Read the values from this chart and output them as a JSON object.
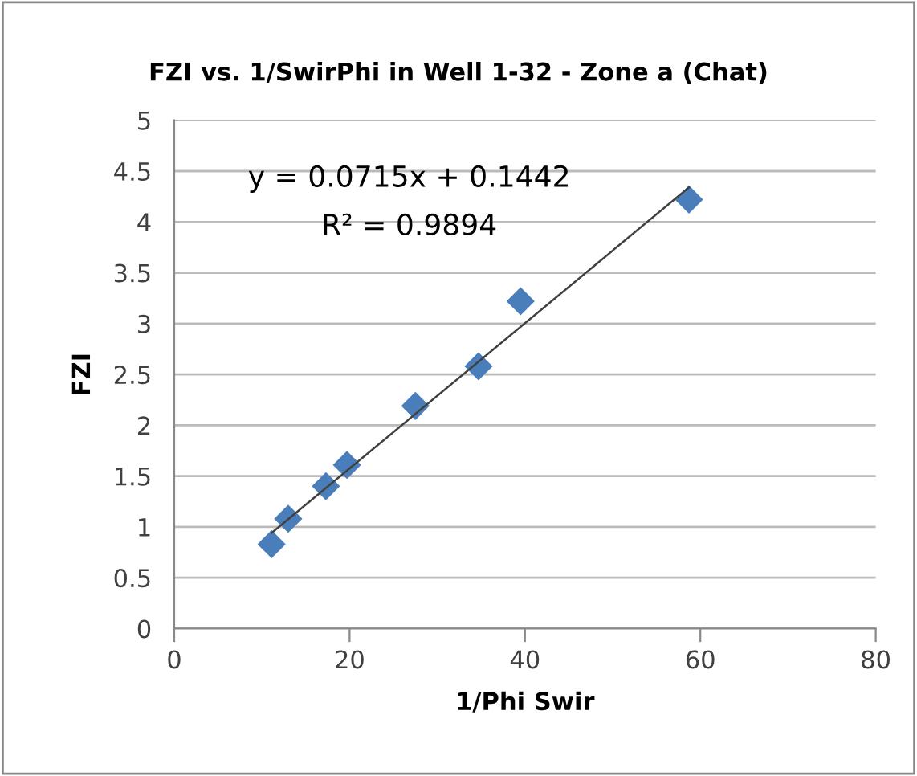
{
  "chart_data": {
    "type": "scatter",
    "title": "FZI vs. 1/SwirPhi in Well 1-32 - Zone a (Chat)",
    "xlabel": "1/Phi Swir",
    "ylabel": "FZI",
    "series": [
      {
        "color": "#4a7ebb",
        "marker": "diamond",
        "x": [
          11.1,
          13.0,
          17.3,
          19.7,
          27.5,
          34.7,
          39.5,
          58.7
        ],
        "values": [
          0.83,
          1.08,
          1.4,
          1.61,
          2.19,
          2.58,
          3.22,
          4.22
        ]
      },
      {
        "type": "line",
        "color": "#404040",
        "marker": "none",
        "line_style": "solid",
        "x": [
          11.1,
          58.7
        ],
        "values": [
          0.94,
          4.34
        ]
      }
    ],
    "annotations": [
      "y = 0.0715x + 0.1442",
      "R² = 0.9894"
    ],
    "xlim": [
      0,
      80
    ],
    "xticks": [
      0,
      20,
      40,
      60,
      80
    ],
    "ylim": [
      0,
      5
    ],
    "yticks": [
      0,
      0.5,
      1,
      1.5,
      2,
      2.5,
      3,
      3.5,
      4,
      4.5,
      5
    ],
    "grid": "y",
    "legend": false
  }
}
